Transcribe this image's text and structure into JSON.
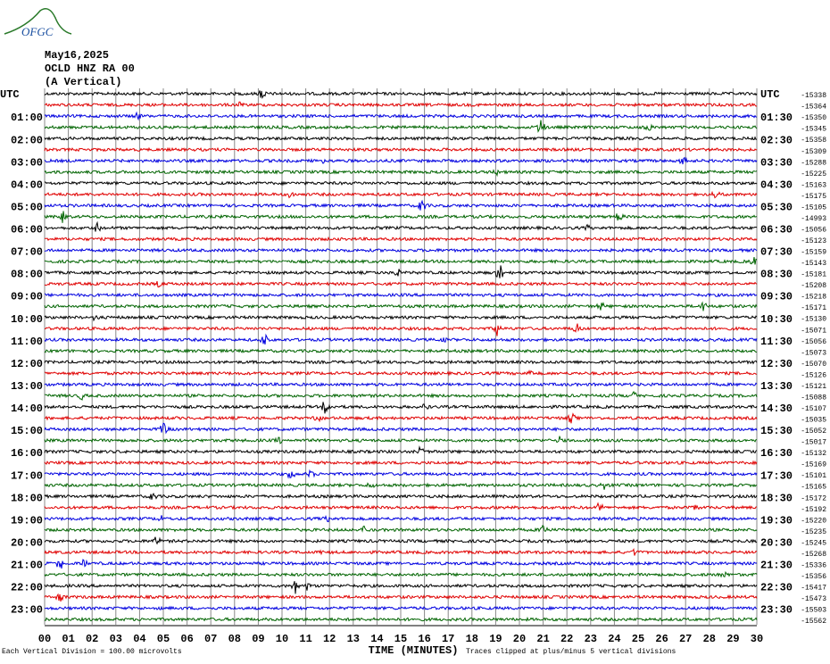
{
  "header": {
    "logo": "OFGC",
    "date": "May16,2025",
    "station": "OCLD HNZ RA 00",
    "component": "(A Vertical)"
  },
  "left_labels": [
    "UTC",
    "01:00",
    "02:00",
    "03:00",
    "04:00",
    "05:00",
    "06:00",
    "07:00",
    "08:00",
    "09:00",
    "10:00",
    "11:00",
    "12:00",
    "13:00",
    "14:00",
    "15:00",
    "16:00",
    "17:00",
    "18:00",
    "19:00",
    "20:00",
    "21:00",
    "22:00",
    "23:00"
  ],
  "right_labels": [
    "UTC",
    "01:30",
    "02:30",
    "03:30",
    "04:30",
    "05:30",
    "06:30",
    "07:30",
    "08:30",
    "09:30",
    "10:30",
    "11:30",
    "12:30",
    "13:30",
    "14:30",
    "15:30",
    "16:30",
    "17:30",
    "18:30",
    "19:30",
    "20:30",
    "21:30",
    "22:30",
    "23:30"
  ],
  "trace_offsets": [
    -15338,
    -15364,
    -15350,
    -15345,
    -15358,
    -15309,
    -15288,
    -15225,
    -15163,
    -15175,
    -15105,
    -14993,
    -15056,
    -15123,
    -15159,
    -15143,
    -15181,
    -15208,
    -15218,
    -15171,
    -15130,
    -15071,
    -15056,
    -15073,
    -15070,
    -15126,
    -15121,
    -15088,
    -15107,
    -15035,
    -15052,
    -15017,
    -15132,
    -15169,
    -15101,
    -15165,
    -15172,
    -15192,
    -15220,
    -15235,
    -15245,
    -15268,
    -15336,
    -15356,
    -15417,
    -15473,
    -15503,
    -15562
  ],
  "x_ticks": [
    "00",
    "01",
    "02",
    "03",
    "04",
    "05",
    "06",
    "07",
    "08",
    "09",
    "10",
    "11",
    "12",
    "13",
    "14",
    "15",
    "16",
    "17",
    "18",
    "19",
    "20",
    "21",
    "22",
    "23",
    "24",
    "25",
    "26",
    "27",
    "28",
    "29",
    "30"
  ],
  "footer": {
    "scale": "Each Vertical Division =  100.00 microvolts",
    "x_label": "TIME (MINUTES)",
    "clip": "Traces clipped at plus/minus 5 vertical divisions"
  }
}
